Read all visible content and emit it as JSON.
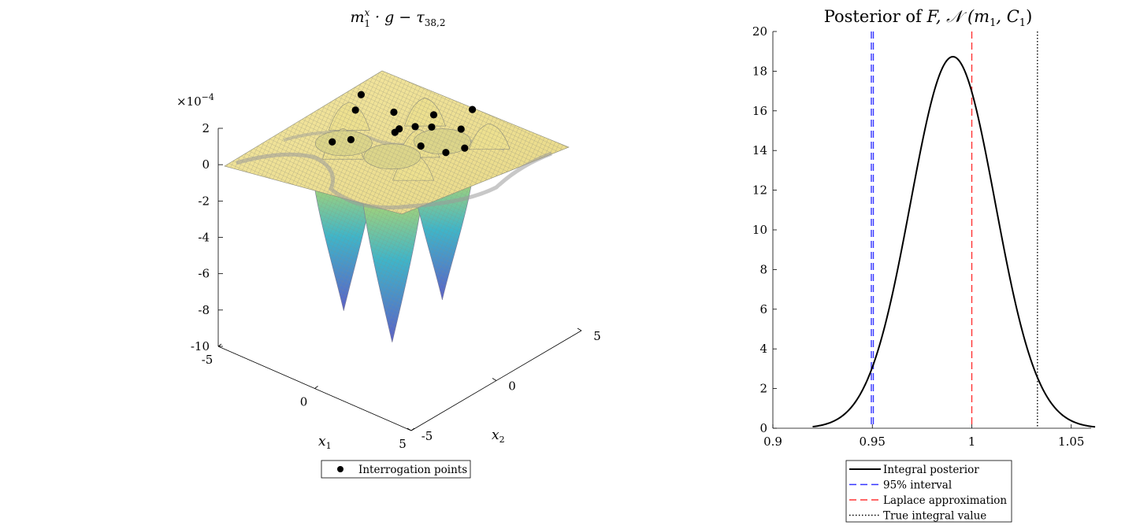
{
  "chart_data": [
    {
      "type": "surface3d",
      "title_main": "m",
      "title_sup": "x",
      "title_sub": "1",
      "title_mid": " · g − τ",
      "title_sub2": "38,2",
      "z_exponent_base": "×10",
      "z_exponent_power": "−4",
      "z_ticks": [
        "2",
        "0",
        "-2",
        "-4",
        "-6",
        "-8",
        "-10"
      ],
      "z_range": [
        -10,
        2
      ],
      "x1_ticks": [
        "-5",
        "0",
        "5"
      ],
      "x1_range": [
        -5,
        5
      ],
      "x2_ticks": [
        "-5",
        "0",
        "5"
      ],
      "x2_range": [
        -5,
        5
      ],
      "xlabel": "x",
      "xlabel_sub": "1",
      "ylabel": "x",
      "ylabel_sub": "2",
      "wells": [
        {
          "x1": -1.9,
          "x2": -1.0,
          "depth": -9.0
        },
        {
          "x1": 0.6,
          "x2": -0.8,
          "depth": -10.0
        },
        {
          "x1": 1.2,
          "x2": 1.6,
          "depth": -8.5
        }
      ],
      "bumps": [
        {
          "x1": -3.0,
          "x2": 0.6,
          "height": 1.6
        },
        {
          "x1": -0.8,
          "x2": 2.8,
          "height": 1.6
        },
        {
          "x1": -1.4,
          "x2": -1.6,
          "height": 1.8
        },
        {
          "x1": 1.0,
          "x2": 0.4,
          "height": 1.6
        },
        {
          "x1": 2.6,
          "x2": 2.9,
          "height": 1.4
        },
        {
          "x1": 2.4,
          "x2": -1.5,
          "height": 1.5
        }
      ],
      "legend": [
        {
          "marker": "filled-circle",
          "label": "Interrogation points"
        }
      ],
      "colors": {
        "surface_high": "#f0df8c",
        "surface_mid": "#a8d48a",
        "surface_low_teal": "#3fb5c9",
        "surface_low": "#5b67c9",
        "mesh": "#7a7a7a",
        "points": "#000000"
      }
    },
    {
      "type": "line",
      "title_text": "Posterior of ",
      "title_var": "F",
      "title_rest": ", 𝒩 (m",
      "title_sub1": "1",
      "title_mid": ", C",
      "title_sub2": "1",
      "title_end": ")",
      "xlim": [
        0.9,
        1.06
      ],
      "ylim": [
        0,
        20
      ],
      "x_ticks": [
        "0.9",
        "0.95",
        "1",
        "1.05"
      ],
      "x_tick_values": [
        0.9,
        0.95,
        1.0,
        1.05
      ],
      "y_ticks": [
        "0",
        "2",
        "4",
        "6",
        "8",
        "10",
        "12",
        "14",
        "16",
        "18",
        "20"
      ],
      "y_tick_values": [
        0,
        2,
        4,
        6,
        8,
        10,
        12,
        14,
        16,
        18,
        20
      ],
      "series": [
        {
          "name": "Integral posterior",
          "kind": "gaussian",
          "mean": 0.9905,
          "sd": 0.0213,
          "x_from": 0.92,
          "x_to": 1.062,
          "color": "#000000",
          "style": "solid"
        }
      ],
      "vlines": [
        {
          "name": "95% interval",
          "x": 0.9495,
          "color": "#3333ff",
          "style": "dash"
        },
        {
          "name": "95% interval",
          "x": 0.9505,
          "color": "#3333ff",
          "style": "dash"
        },
        {
          "name": "Laplace approximation",
          "x": 1.0,
          "color": "#ff3333",
          "style": "dash"
        },
        {
          "name": "True integral value",
          "x": 1.033,
          "color": "#000000",
          "style": "dot"
        }
      ],
      "legend": [
        {
          "label": "Integral posterior",
          "color": "#000000",
          "style": "solid"
        },
        {
          "label": "95% interval",
          "color": "#3333ff",
          "style": "dash"
        },
        {
          "label": "Laplace approximation",
          "color": "#ff3333",
          "style": "dash"
        },
        {
          "label": "True integral value",
          "color": "#000000",
          "style": "dot"
        }
      ]
    }
  ]
}
